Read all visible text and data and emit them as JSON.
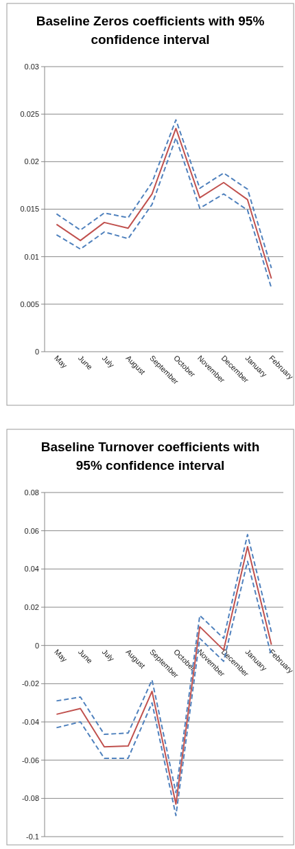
{
  "chart_data": [
    {
      "type": "line",
      "title": "Baseline Zeros coefficients with 95% confidence interval",
      "categories": [
        "May",
        "June",
        "July",
        "August",
        "September",
        "October",
        "November",
        "December",
        "January",
        "February"
      ],
      "series": [
        {
          "color": "#4f81bd",
          "line_style": "dashed",
          "values": [
            0.0145,
            0.0128,
            0.0146,
            0.0141,
            0.0178,
            0.0244,
            0.0172,
            0.0188,
            0.0171,
            0.0088
          ]
        },
        {
          "color": "#4f81bd",
          "line_style": "dashed",
          "values": [
            0.0123,
            0.0108,
            0.0126,
            0.0119,
            0.0155,
            0.0225,
            0.0151,
            0.0166,
            0.0149,
            0.0067
          ]
        },
        {
          "color": "#c0504d",
          "line_style": "solid",
          "values": [
            0.0134,
            0.0117,
            0.0136,
            0.013,
            0.0166,
            0.0235,
            0.0162,
            0.0178,
            0.016,
            0.0077
          ]
        }
      ],
      "ylim": [
        0,
        0.03
      ],
      "yticks": [
        0,
        0.005,
        0.01,
        0.015,
        0.02,
        0.025,
        0.03
      ],
      "grid": "y"
    },
    {
      "type": "line",
      "title": "Baseline Turnover coefficients with 95% confidence interval",
      "categories": [
        "May",
        "June",
        "July",
        "August",
        "September",
        "October",
        "November",
        "December",
        "January",
        "February"
      ],
      "series": [
        {
          "color": "#4f81bd",
          "line_style": "dashed",
          "values": [
            -0.029,
            -0.027,
            -0.0465,
            -0.0458,
            -0.018,
            -0.077,
            0.0157,
            0.0037,
            0.058,
            0.007
          ]
        },
        {
          "color": "#4f81bd",
          "line_style": "dashed",
          "values": [
            -0.043,
            -0.04,
            -0.059,
            -0.059,
            -0.03,
            -0.089,
            0.0037,
            -0.0083,
            0.044,
            -0.0055
          ]
        },
        {
          "color": "#c0504d",
          "line_style": "solid",
          "values": [
            -0.036,
            -0.033,
            -0.053,
            -0.0526,
            -0.024,
            -0.083,
            0.0098,
            -0.0024,
            0.0517,
            0.0004
          ]
        }
      ],
      "ylim": [
        -0.1,
        0.08
      ],
      "yticks": [
        -0.1,
        -0.08,
        -0.06,
        -0.04,
        -0.02,
        0,
        0.02,
        0.04,
        0.06,
        0.08
      ],
      "grid": "y"
    }
  ]
}
